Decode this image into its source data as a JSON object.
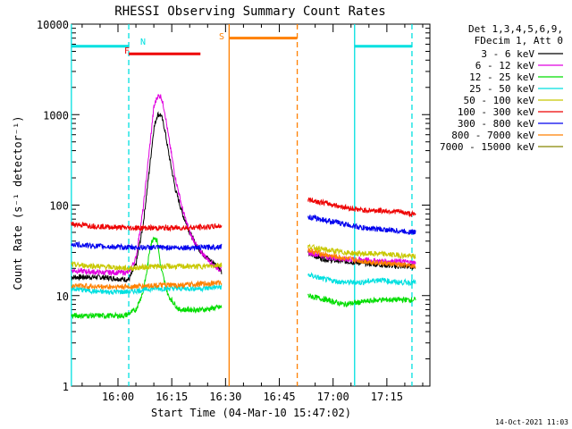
{
  "chart_data": {
    "type": "line",
    "title": "RHESSI Observing Summary Count Rates",
    "xlabel": "Start Time (04-Mar-10 15:47:02)",
    "ylabel": "Count Rate (s⁻¹ detector⁻¹)",
    "yscale": "log",
    "ylim": [
      1,
      10000
    ],
    "xlim": [
      "15:47:02",
      "17:27:00"
    ],
    "x_ticks": [
      "16:00",
      "16:15",
      "16:30",
      "16:45",
      "17:00",
      "17:15"
    ],
    "y_ticks": [
      "1",
      "10",
      "100",
      "1000",
      "10000"
    ],
    "timestamp": "14-Oct-2021 11:03",
    "legend": {
      "placement": "right",
      "header": [
        "Det 1,3,4,5,6,9,",
        "FDecim 1, Att 0"
      ]
    },
    "series": [
      {
        "name": "3 - 6 keV",
        "color": "#000000",
        "segments": [
          {
            "x": [
              "15:47",
              "15:55",
              "16:03",
              "16:05",
              "16:07",
              "16:09",
              "16:10",
              "16:11",
              "16:12",
              "16:13",
              "16:14",
              "16:16",
              "16:18",
              "16:20",
              "16:22",
              "16:24",
              "16:26",
              "16:28",
              "16:29"
            ],
            "y": [
              16,
              16,
              15,
              22,
              60,
              300,
              700,
              1000,
              1000,
              700,
              400,
              150,
              80,
              50,
              35,
              28,
              24,
              21,
              18
            ]
          },
          {
            "x": [
              "16:53",
              "16:58",
              "17:03",
              "17:08",
              "17:13",
              "17:18",
              "17:23"
            ],
            "y": [
              29,
              25,
              24,
              23,
              22,
              21,
              21
            ]
          }
        ]
      },
      {
        "name": "6 - 12 keV",
        "color": "#e000e0",
        "segments": [
          {
            "x": [
              "15:47",
              "15:55",
              "16:03",
              "16:05",
              "16:07",
              "16:09",
              "16:10",
              "16:11",
              "16:12",
              "16:13",
              "16:14",
              "16:16",
              "16:18",
              "16:20",
              "16:22",
              "16:24",
              "16:26",
              "16:28",
              "16:29"
            ],
            "y": [
              19,
              18,
              18,
              26,
              90,
              500,
              1200,
              1600,
              1600,
              1100,
              600,
              200,
              90,
              50,
              35,
              28,
              23,
              20,
              19
            ]
          },
          {
            "x": [
              "16:53",
              "16:58",
              "17:03",
              "17:08",
              "17:13",
              "17:18",
              "17:23"
            ],
            "y": [
              30,
              27,
              25,
              25,
              24,
              24,
              23
            ]
          }
        ]
      },
      {
        "name": "12 - 25 keV",
        "color": "#00dd00",
        "segments": [
          {
            "x": [
              "15:47",
              "15:55",
              "16:02",
              "16:05",
              "16:07",
              "16:08",
              "16:09",
              "16:10",
              "16:11",
              "16:12",
              "16:14",
              "16:17",
              "16:20",
              "16:24",
              "16:29"
            ],
            "y": [
              6,
              6,
              6,
              7,
              11,
              18,
              35,
              45,
              40,
              20,
              10,
              7,
              7,
              7,
              7.5
            ]
          },
          {
            "x": [
              "16:53",
              "16:58",
              "17:03",
              "17:08",
              "17:13",
              "17:18",
              "17:23"
            ],
            "y": [
              10,
              9,
              8,
              8.5,
              9,
              9,
              9
            ]
          }
        ]
      },
      {
        "name": "25 - 50 keV",
        "color": "#00e0e0",
        "segments": [
          {
            "x": [
              "15:47",
              "15:55",
              "16:03",
              "16:10",
              "16:17",
              "16:24",
              "16:29"
            ],
            "y": [
              12,
              11,
              11,
              12,
              12,
              12,
              12.5
            ]
          },
          {
            "x": [
              "16:53",
              "16:58",
              "17:03",
              "17:08",
              "17:13",
              "17:18",
              "17:23"
            ],
            "y": [
              17,
              15,
              14,
              14,
              15,
              14,
              14
            ]
          }
        ]
      },
      {
        "name": "50 - 100 keV",
        "color": "#c8c800",
        "segments": [
          {
            "x": [
              "15:47",
              "15:55",
              "16:03",
              "16:10",
              "16:17",
              "16:24",
              "16:29"
            ],
            "y": [
              22,
              21,
              20,
              21,
              21,
              21,
              22
            ]
          },
          {
            "x": [
              "16:53",
              "16:58",
              "17:03",
              "17:08",
              "17:13",
              "17:18",
              "17:23"
            ],
            "y": [
              35,
              32,
              30,
              29,
              29,
              28,
              27
            ]
          }
        ]
      },
      {
        "name": "100 - 300 keV",
        "color": "#ee0000",
        "segments": [
          {
            "x": [
              "15:47",
              "15:55",
              "16:03",
              "16:10",
              "16:17",
              "16:24",
              "16:29"
            ],
            "y": [
              62,
              58,
              56,
              56,
              56,
              57,
              59
            ]
          },
          {
            "x": [
              "16:53",
              "16:58",
              "17:03",
              "17:08",
              "17:13",
              "17:18",
              "17:23"
            ],
            "y": [
              115,
              105,
              95,
              88,
              87,
              85,
              78
            ]
          }
        ]
      },
      {
        "name": "300 - 800 keV",
        "color": "#0000ee",
        "segments": [
          {
            "x": [
              "15:47",
              "15:55",
              "16:03",
              "16:10",
              "16:17",
              "16:24",
              "16:29"
            ],
            "y": [
              37,
              35,
              34,
              34,
              34,
              34,
              35
            ]
          },
          {
            "x": [
              "16:53",
              "16:58",
              "17:03",
              "17:08",
              "17:13",
              "17:18",
              "17:23"
            ],
            "y": [
              74,
              68,
              62,
              56,
              54,
              52,
              50
            ]
          }
        ]
      },
      {
        "name": "800 - 7000 keV",
        "color": "#ff8000",
        "segments": [
          {
            "x": [
              "15:47",
              "15:55",
              "16:03",
              "16:10",
              "16:17",
              "16:24",
              "16:29"
            ],
            "y": [
              13,
              12.5,
              12.5,
              13,
              13,
              13.5,
              14
            ]
          },
          {
            "x": [
              "16:53",
              "16:58",
              "17:03",
              "17:08",
              "17:13",
              "17:18",
              "17:23"
            ],
            "y": [
              32,
              28,
              26,
              24,
              23,
              22,
              21
            ]
          }
        ]
      },
      {
        "name": "7000 - 15000 keV",
        "color": "#888800",
        "segments": []
      }
    ],
    "vertical_markers": [
      {
        "x": "15:47",
        "color": "#00e0e0",
        "style": "solid"
      },
      {
        "x": "16:03",
        "color": "#00e0e0",
        "style": "dashed"
      },
      {
        "x": "16:31",
        "color": "#ff8000",
        "style": "solid"
      },
      {
        "x": "16:50",
        "color": "#ff8000",
        "style": "dashed"
      },
      {
        "x": "17:06",
        "color": "#00e0e0",
        "style": "solid"
      },
      {
        "x": "17:22",
        "color": "#00e0e0",
        "style": "dashed"
      }
    ],
    "flag_bars": [
      {
        "label": "",
        "color": "#00e0e0",
        "start": "15:47",
        "end": "16:03",
        "level": 5700
      },
      {
        "label": "N",
        "color": "#00e0e0",
        "start": "",
        "end": "",
        "level": 0
      },
      {
        "label": "F",
        "color": "#ee0000",
        "start": "16:03",
        "end": "16:23",
        "level": 4700
      },
      {
        "label": "S",
        "color": "#ff8000",
        "start": "16:31",
        "end": "16:50",
        "level": 7000
      },
      {
        "label": "",
        "color": "#00e0e0",
        "start": "17:06",
        "end": "17:22",
        "level": 5700
      }
    ]
  }
}
